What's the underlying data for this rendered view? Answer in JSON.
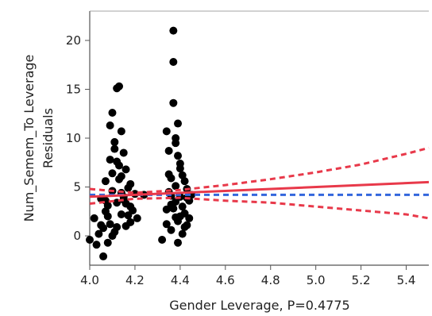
{
  "chart_data": {
    "type": "scatter",
    "xlabel": "Gender Leverage, P=0.4775",
    "ylabel": [
      "Num_Semem_To Leverage",
      "Residuals"
    ],
    "xlim": [
      4.0,
      5.5
    ],
    "ylim": [
      -3,
      23
    ],
    "x_ticks": [
      "4.0",
      "4.2",
      "4.4",
      "4.6",
      "4.8",
      "5.0",
      "5.2",
      "5.4"
    ],
    "y_ticks": [
      "0",
      "5",
      "10",
      "15",
      "20"
    ],
    "x_tick_values": [
      4.0,
      4.2,
      4.4,
      4.6,
      4.8,
      5.0,
      5.2,
      5.4
    ],
    "y_tick_values": [
      0,
      5,
      10,
      15,
      20
    ],
    "grid": false,
    "colors": {
      "points": "#000000",
      "fit": "#e8394a",
      "confidence": "#e8394a",
      "mean": "#3366dd",
      "axis": "#555555"
    },
    "points": [
      [
        4.0,
        -0.4
      ],
      [
        4.02,
        1.8
      ],
      [
        4.03,
        -0.9
      ],
      [
        4.04,
        0.2
      ],
      [
        4.05,
        3.8
      ],
      [
        4.06,
        -2.1
      ],
      [
        4.06,
        0.8
      ],
      [
        4.07,
        2.5
      ],
      [
        4.07,
        5.6
      ],
      [
        4.08,
        -0.7
      ],
      [
        4.08,
        3.1
      ],
      [
        4.09,
        7.8
      ],
      [
        4.09,
        1.2
      ],
      [
        4.1,
        12.6
      ],
      [
        4.1,
        4.6
      ],
      [
        4.1,
        6.4
      ],
      [
        4.11,
        9.6
      ],
      [
        4.11,
        0.4
      ],
      [
        4.12,
        15.1
      ],
      [
        4.12,
        3.4
      ],
      [
        4.13,
        15.3
      ],
      [
        4.13,
        5.8
      ],
      [
        4.14,
        10.7
      ],
      [
        4.14,
        2.2
      ],
      [
        4.15,
        8.5
      ],
      [
        4.15,
        4.0
      ],
      [
        4.16,
        1.0
      ],
      [
        4.16,
        6.8
      ],
      [
        4.17,
        4.9
      ],
      [
        4.18,
        3.0
      ],
      [
        4.18,
        5.3
      ],
      [
        4.19,
        2.6
      ],
      [
        4.2,
        4.3
      ],
      [
        4.21,
        1.8
      ],
      [
        4.24,
        4.2
      ],
      [
        4.09,
        11.3
      ],
      [
        4.11,
        8.9
      ],
      [
        4.13,
        7.2
      ],
      [
        4.15,
        3.7
      ],
      [
        4.17,
        2.1
      ],
      [
        4.05,
        1.1
      ],
      [
        4.08,
        2.0
      ],
      [
        4.12,
        0.9
      ],
      [
        4.14,
        6.1
      ],
      [
        4.16,
        3.3
      ],
      [
        4.1,
        0.0
      ],
      [
        4.12,
        7.6
      ],
      [
        4.14,
        4.4
      ],
      [
        4.07,
        3.6
      ],
      [
        4.18,
        1.4
      ],
      [
        4.32,
        -0.4
      ],
      [
        4.34,
        2.7
      ],
      [
        4.34,
        10.7
      ],
      [
        4.35,
        4.5
      ],
      [
        4.35,
        6.3
      ],
      [
        4.36,
        0.6
      ],
      [
        4.36,
        3.2
      ],
      [
        4.37,
        21.0
      ],
      [
        4.37,
        17.8
      ],
      [
        4.37,
        13.6
      ],
      [
        4.38,
        9.5
      ],
      [
        4.38,
        5.1
      ],
      [
        4.38,
        1.9
      ],
      [
        4.39,
        8.2
      ],
      [
        4.39,
        -0.7
      ],
      [
        4.39,
        11.5
      ],
      [
        4.4,
        4.0
      ],
      [
        4.4,
        6.9
      ],
      [
        4.41,
        3.0
      ],
      [
        4.41,
        0.2
      ],
      [
        4.42,
        5.6
      ],
      [
        4.42,
        2.3
      ],
      [
        4.43,
        4.8
      ],
      [
        4.43,
        1.1
      ],
      [
        4.44,
        3.6
      ],
      [
        4.45,
        4.2
      ],
      [
        4.38,
        10.0
      ],
      [
        4.35,
        8.7
      ],
      [
        4.4,
        7.4
      ],
      [
        4.37,
        2.8
      ],
      [
        4.36,
        5.9
      ],
      [
        4.41,
        6.2
      ],
      [
        4.39,
        1.5
      ],
      [
        4.43,
        3.9
      ],
      [
        4.42,
        0.9
      ],
      [
        4.36,
        4.1
      ],
      [
        4.38,
        3.5
      ],
      [
        4.4,
        2.0
      ],
      [
        4.44,
        1.8
      ],
      [
        4.34,
        1.2
      ]
    ],
    "fit_line": [
      [
        4.0,
        4.0
      ],
      [
        5.5,
        5.5
      ]
    ],
    "confidence_upper": [
      [
        4.0,
        4.8
      ],
      [
        4.2,
        4.4
      ],
      [
        4.4,
        4.7
      ],
      [
        4.6,
        5.2
      ],
      [
        4.8,
        5.8
      ],
      [
        5.0,
        6.5
      ],
      [
        5.2,
        7.3
      ],
      [
        5.4,
        8.4
      ],
      [
        5.5,
        9.0
      ]
    ],
    "confidence_lower": [
      [
        4.0,
        3.3
      ],
      [
        4.2,
        3.8
      ],
      [
        4.4,
        3.9
      ],
      [
        4.6,
        3.6
      ],
      [
        4.8,
        3.4
      ],
      [
        5.0,
        3.0
      ],
      [
        5.2,
        2.6
      ],
      [
        5.4,
        2.2
      ],
      [
        5.5,
        1.8
      ]
    ],
    "mean_line": 4.2
  }
}
